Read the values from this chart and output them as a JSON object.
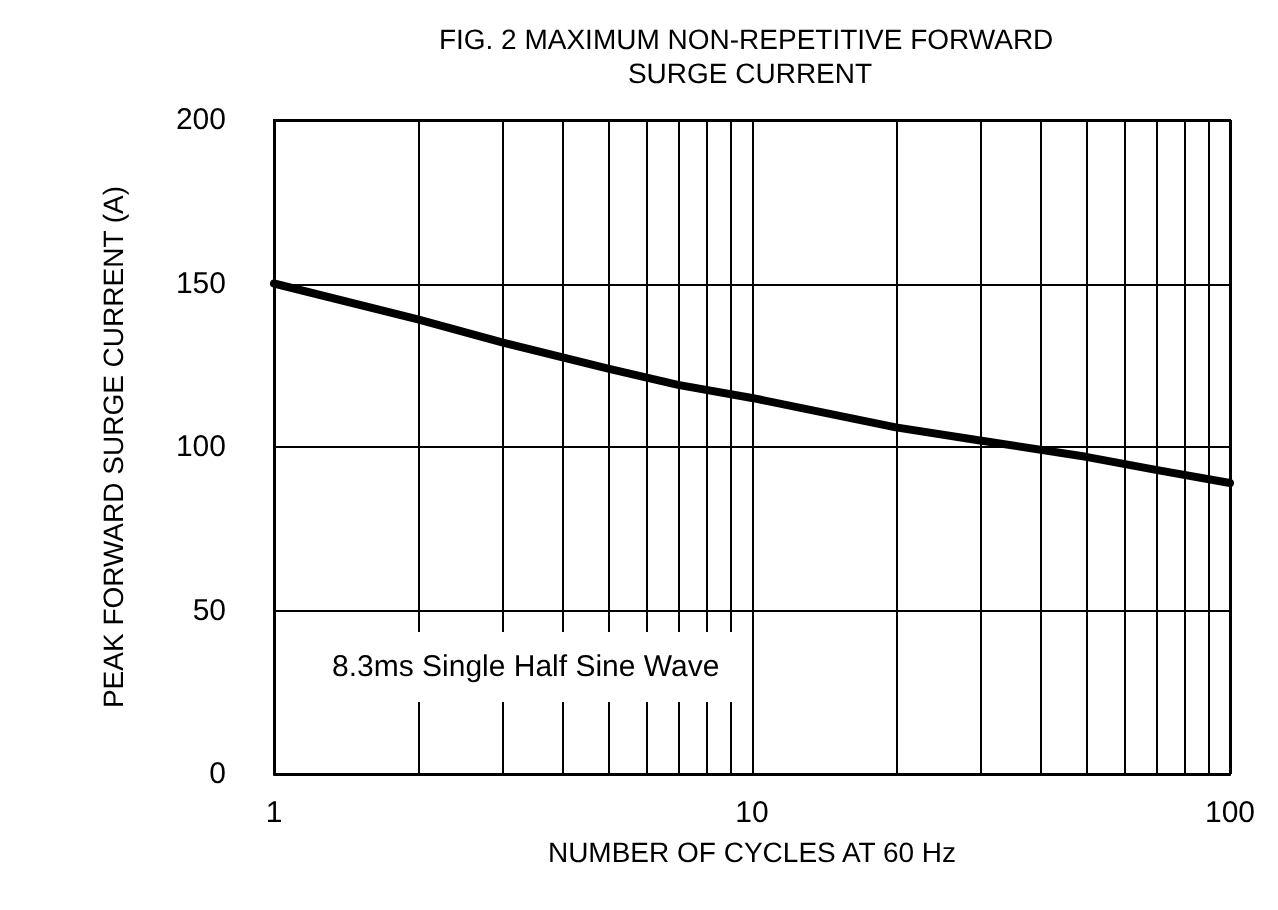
{
  "chart_data": {
    "type": "line",
    "title": "FIG. 2 MAXIMUM NON-REPETITIVE FORWARD SURGE CURRENT",
    "xlabel": "NUMBER OF CYCLES AT 60 Hz",
    "ylabel": "PEAK FORWARD SURGE CURRENT (A)",
    "x": [
      1,
      2,
      3,
      5,
      7,
      10,
      20,
      30,
      50,
      70,
      100
    ],
    "series": [
      {
        "color": "#000000",
        "values": [
          150,
          139,
          132,
          124,
          119,
          115,
          106,
          102,
          97,
          93,
          89
        ]
      }
    ],
    "log": "x",
    "xlim": [
      1,
      100
    ],
    "xticks": [
      1,
      {
        "value": 2,
        "label": null
      },
      {
        "value": 3,
        "label": null
      },
      {
        "value": 4,
        "label": null
      },
      {
        "value": 5,
        "label": null
      },
      {
        "value": 6,
        "label": null
      },
      {
        "value": 7,
        "label": null
      },
      {
        "value": 8,
        "label": null
      },
      {
        "value": 9,
        "label": null
      },
      10,
      {
        "value": 20,
        "label": null
      },
      {
        "value": 30,
        "label": null
      },
      {
        "value": 40,
        "label": null
      },
      {
        "value": 50,
        "label": null
      },
      {
        "value": 60,
        "label": null
      },
      {
        "value": 70,
        "label": null
      },
      {
        "value": 80,
        "label": null
      },
      {
        "value": 90,
        "label": null
      },
      100
    ],
    "ylim": [
      0,
      200
    ],
    "yticks": [
      0,
      50,
      100,
      150,
      200
    ],
    "annotations": [
      "8.3ms Single Half Sine Wave"
    ],
    "grid": true,
    "marker": "none",
    "line_style": "solid"
  }
}
